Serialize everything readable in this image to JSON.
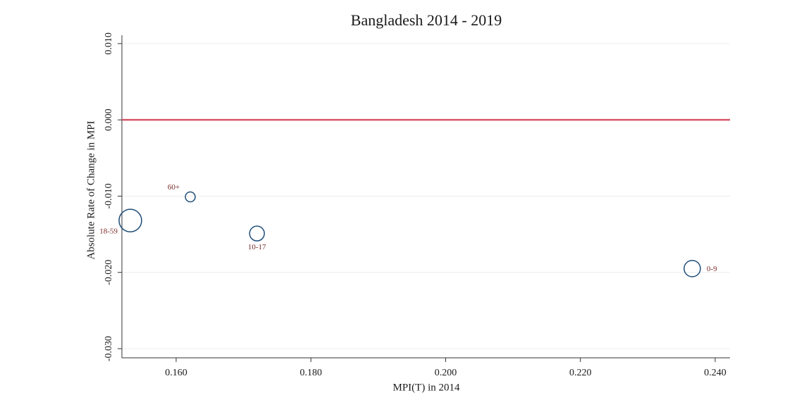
{
  "chart_data": {
    "type": "scatter",
    "title": "Bangladesh 2014 - 2019",
    "x_label": "MPI(T) in 2014",
    "y_label": "Absolute Rate of Change in MPI",
    "series": [
      {
        "color": "#1f4e79",
        "labels": [
          "60+",
          "18-59",
          "10-17",
          "0-9"
        ],
        "x": [
          0.1621,
          0.1532,
          0.172,
          0.2366
        ],
        "values": [
          -0.0101,
          -0.0132,
          -0.0149,
          -0.0195
        ],
        "sizes": [
          0.08,
          0.42,
          0.18,
          0.22
        ]
      }
    ],
    "xlim": [
      0.15195,
      0.2422
    ],
    "ylim": [
      -0.0312,
      0.0111
    ],
    "xticks": [
      {
        "value": 0.16,
        "label": "0.160"
      },
      {
        "value": 0.18,
        "label": "0.180"
      },
      {
        "value": 0.2,
        "label": "0.200"
      },
      {
        "value": 0.22,
        "label": "0.220"
      },
      {
        "value": 0.24,
        "label": "0.240"
      }
    ],
    "yticks": [
      {
        "value": -0.03,
        "label": "-0.030"
      },
      {
        "value": -0.02,
        "label": "-0.020"
      },
      {
        "value": -0.01,
        "label": "-0.010"
      },
      {
        "value": 0,
        "label": "0.000"
      },
      {
        "value": 0.01,
        "label": "0.010"
      }
    ],
    "grid": true,
    "reference_line": {
      "value": 0,
      "color": "#d9576b"
    }
  }
}
